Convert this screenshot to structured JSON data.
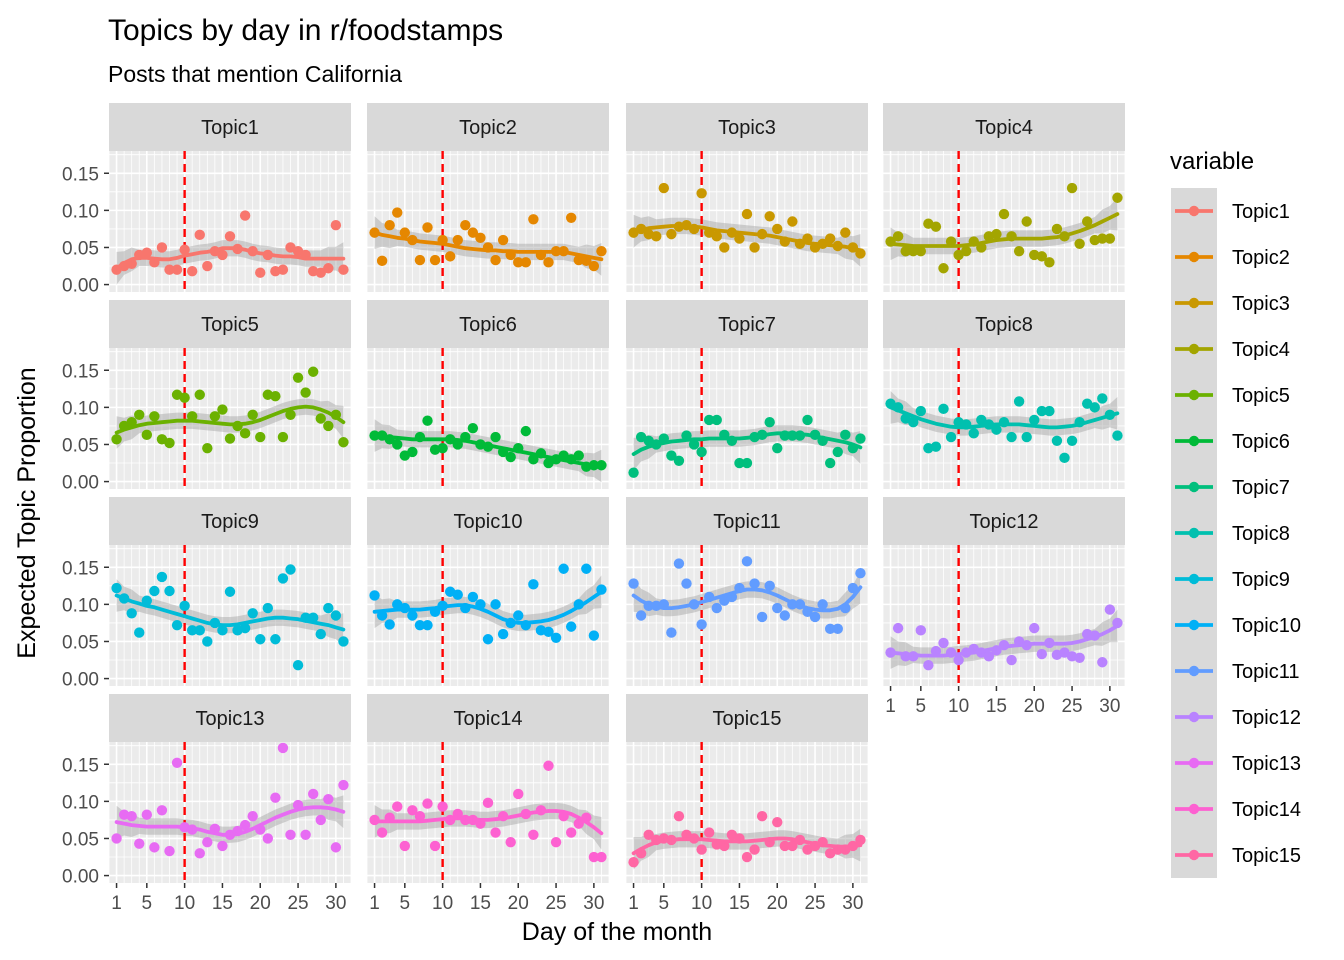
{
  "chart_data": {
    "type": "scatter",
    "title": "Topics by day in r/foodstamps",
    "subtitle": "Posts that mention California",
    "xlabel": "Day of the month",
    "ylabel": "Expected Topic Proportion",
    "xlim": [
      0,
      32
    ],
    "ylim": [
      -0.01,
      0.18
    ],
    "x_ticks": [
      1,
      5,
      10,
      15,
      20,
      25,
      30
    ],
    "y_ticks": [
      0.0,
      0.05,
      0.1,
      0.15
    ],
    "y_tick_labels": [
      "0.00",
      "0.05",
      "0.10",
      "0.15"
    ],
    "reference_line": {
      "x": 10,
      "color": "#ff0000",
      "style": "dashed"
    },
    "grid": true,
    "smoother": "loess with confidence band",
    "legend": {
      "title": "variable",
      "position": "right"
    },
    "series": [
      {
        "name": "Topic1",
        "color": "#F8766D",
        "values": [
          0.02,
          0.025,
          0.028,
          0.04,
          0.043,
          0.03,
          0.05,
          0.02,
          0.02,
          0.047,
          0.018,
          0.067,
          0.025,
          0.045,
          0.04,
          0.065,
          0.048,
          0.093,
          0.045,
          0.016,
          0.04,
          0.018,
          0.02,
          0.05,
          0.045,
          0.04,
          0.018,
          0.016,
          0.022,
          0.08,
          0.02
        ],
        "smooth": [
          0.022,
          0.029,
          0.034,
          0.036,
          0.036,
          0.035,
          0.034,
          0.034,
          0.036,
          0.039,
          0.041,
          0.043,
          0.044,
          0.046,
          0.049,
          0.049,
          0.049,
          0.047,
          0.044,
          0.042,
          0.041,
          0.039,
          0.038,
          0.038,
          0.037,
          0.035,
          0.035,
          0.035,
          0.035,
          0.035,
          0.035
        ]
      },
      {
        "name": "Topic2",
        "color": "#E58700",
        "values": [
          0.07,
          0.032,
          0.08,
          0.097,
          0.07,
          0.06,
          0.033,
          0.077,
          0.033,
          0.06,
          0.038,
          0.06,
          0.08,
          0.07,
          0.063,
          0.05,
          0.033,
          0.06,
          0.04,
          0.03,
          0.03,
          0.088,
          0.04,
          0.03,
          0.045,
          0.045,
          0.09,
          0.033,
          0.032,
          0.025,
          0.045
        ],
        "smooth": [
          0.07,
          0.067,
          0.065,
          0.063,
          0.062,
          0.06,
          0.058,
          0.057,
          0.056,
          0.055,
          0.053,
          0.051,
          0.049,
          0.048,
          0.047,
          0.046,
          0.046,
          0.045,
          0.045,
          0.044,
          0.044,
          0.044,
          0.044,
          0.044,
          0.044,
          0.044,
          0.042,
          0.04,
          0.038,
          0.036,
          0.034
        ]
      },
      {
        "name": "Topic3",
        "color": "#C99800",
        "values": [
          0.07,
          0.075,
          0.068,
          0.065,
          0.13,
          0.068,
          0.078,
          0.08,
          0.075,
          0.123,
          0.07,
          0.065,
          0.05,
          0.07,
          0.062,
          0.095,
          0.05,
          0.068,
          0.092,
          0.075,
          0.058,
          0.085,
          0.055,
          0.062,
          0.05,
          0.055,
          0.062,
          0.052,
          0.07,
          0.05,
          0.042
        ],
        "smooth": [
          0.072,
          0.074,
          0.076,
          0.077,
          0.078,
          0.079,
          0.079,
          0.079,
          0.078,
          0.077,
          0.075,
          0.073,
          0.072,
          0.071,
          0.07,
          0.069,
          0.068,
          0.067,
          0.066,
          0.064,
          0.062,
          0.06,
          0.058,
          0.056,
          0.055,
          0.054,
          0.053,
          0.052,
          0.051,
          0.049,
          0.046
        ]
      },
      {
        "name": "Topic4",
        "color": "#A3A500",
        "values": [
          0.058,
          0.065,
          0.045,
          0.045,
          0.045,
          0.082,
          0.078,
          0.022,
          0.058,
          0.04,
          0.045,
          0.058,
          0.05,
          0.065,
          0.068,
          0.095,
          0.065,
          0.045,
          0.085,
          0.04,
          0.038,
          0.03,
          0.075,
          0.065,
          0.13,
          0.055,
          0.085,
          0.06,
          0.062,
          0.062,
          0.117
        ],
        "smooth": [
          0.055,
          0.054,
          0.053,
          0.052,
          0.052,
          0.052,
          0.052,
          0.052,
          0.052,
          0.052,
          0.053,
          0.054,
          0.056,
          0.058,
          0.06,
          0.061,
          0.062,
          0.062,
          0.062,
          0.062,
          0.062,
          0.063,
          0.064,
          0.066,
          0.069,
          0.072,
          0.076,
          0.08,
          0.085,
          0.09,
          0.095
        ]
      },
      {
        "name": "Topic5",
        "color": "#6BB100",
        "values": [
          0.057,
          0.075,
          0.08,
          0.09,
          0.063,
          0.088,
          0.057,
          0.052,
          0.117,
          0.113,
          0.088,
          0.117,
          0.045,
          0.088,
          0.097,
          0.058,
          0.075,
          0.065,
          0.09,
          0.06,
          0.117,
          0.115,
          0.06,
          0.09,
          0.14,
          0.12,
          0.148,
          0.085,
          0.075,
          0.09,
          0.053
        ],
        "smooth": [
          0.066,
          0.07,
          0.073,
          0.076,
          0.078,
          0.079,
          0.08,
          0.081,
          0.082,
          0.082,
          0.082,
          0.081,
          0.08,
          0.079,
          0.078,
          0.077,
          0.077,
          0.078,
          0.08,
          0.083,
          0.087,
          0.091,
          0.095,
          0.098,
          0.1,
          0.101,
          0.1,
          0.097,
          0.093,
          0.087,
          0.08
        ]
      },
      {
        "name": "Topic6",
        "color": "#00BA38",
        "values": [
          0.062,
          0.062,
          0.057,
          0.05,
          0.035,
          0.04,
          0.06,
          0.082,
          0.043,
          0.045,
          0.057,
          0.05,
          0.06,
          0.072,
          0.05,
          0.047,
          0.06,
          0.04,
          0.033,
          0.045,
          0.068,
          0.03,
          0.038,
          0.025,
          0.03,
          0.035,
          0.03,
          0.035,
          0.02,
          0.022,
          0.022
        ],
        "smooth": [
          0.062,
          0.061,
          0.06,
          0.059,
          0.058,
          0.057,
          0.057,
          0.057,
          0.057,
          0.057,
          0.057,
          0.056,
          0.055,
          0.053,
          0.051,
          0.049,
          0.047,
          0.045,
          0.043,
          0.041,
          0.039,
          0.037,
          0.035,
          0.033,
          0.031,
          0.029,
          0.027,
          0.025,
          0.023,
          0.022,
          0.021
        ]
      },
      {
        "name": "Topic7",
        "color": "#00BF7D",
        "values": [
          0.012,
          0.06,
          0.055,
          0.05,
          0.058,
          0.035,
          0.028,
          0.062,
          0.05,
          0.04,
          0.083,
          0.083,
          0.063,
          0.055,
          0.025,
          0.025,
          0.06,
          0.063,
          0.08,
          0.045,
          0.062,
          0.062,
          0.062,
          0.083,
          0.063,
          0.055,
          0.025,
          0.04,
          0.063,
          0.045,
          0.058
        ],
        "smooth": [
          0.037,
          0.043,
          0.047,
          0.05,
          0.052,
          0.054,
          0.055,
          0.056,
          0.057,
          0.057,
          0.058,
          0.058,
          0.058,
          0.058,
          0.058,
          0.059,
          0.06,
          0.062,
          0.064,
          0.065,
          0.065,
          0.065,
          0.064,
          0.063,
          0.061,
          0.059,
          0.057,
          0.055,
          0.053,
          0.05,
          0.046
        ]
      },
      {
        "name": "Topic8",
        "color": "#00C0AF",
        "values": [
          0.105,
          0.1,
          0.085,
          0.08,
          0.095,
          0.045,
          0.047,
          0.098,
          0.06,
          0.08,
          0.077,
          0.065,
          0.083,
          0.077,
          0.07,
          0.08,
          0.06,
          0.108,
          0.06,
          0.083,
          0.095,
          0.095,
          0.055,
          0.032,
          0.055,
          0.08,
          0.105,
          0.1,
          0.112,
          0.09,
          0.062
        ],
        "smooth": [
          0.1,
          0.096,
          0.092,
          0.088,
          0.084,
          0.081,
          0.078,
          0.076,
          0.074,
          0.073,
          0.073,
          0.074,
          0.075,
          0.076,
          0.077,
          0.077,
          0.077,
          0.077,
          0.076,
          0.075,
          0.074,
          0.073,
          0.073,
          0.074,
          0.075,
          0.077,
          0.08,
          0.083,
          0.086,
          0.089,
          0.092
        ]
      },
      {
        "name": "Topic9",
        "color": "#00BCD8",
        "values": [
          0.122,
          0.108,
          0.088,
          0.062,
          0.105,
          0.118,
          0.137,
          0.118,
          0.072,
          0.098,
          0.065,
          0.065,
          0.05,
          0.075,
          0.065,
          0.117,
          0.065,
          0.068,
          0.088,
          0.053,
          0.095,
          0.053,
          0.135,
          0.147,
          0.018,
          0.082,
          0.082,
          0.06,
          0.095,
          0.085,
          0.05
        ],
        "smooth": [
          0.112,
          0.108,
          0.104,
          0.101,
          0.098,
          0.096,
          0.093,
          0.09,
          0.087,
          0.084,
          0.081,
          0.078,
          0.075,
          0.073,
          0.072,
          0.072,
          0.073,
          0.075,
          0.077,
          0.079,
          0.081,
          0.082,
          0.082,
          0.081,
          0.08,
          0.078,
          0.076,
          0.074,
          0.072,
          0.069,
          0.066
        ]
      },
      {
        "name": "Topic10",
        "color": "#00B0F6",
        "values": [
          0.112,
          0.085,
          0.073,
          0.1,
          0.095,
          0.085,
          0.072,
          0.072,
          0.09,
          0.098,
          0.117,
          0.113,
          0.095,
          0.11,
          0.1,
          0.053,
          0.1,
          0.06,
          0.075,
          0.085,
          0.072,
          0.127,
          0.065,
          0.063,
          0.055,
          0.148,
          0.07,
          0.1,
          0.148,
          0.058,
          0.12
        ],
        "smooth": [
          0.09,
          0.091,
          0.092,
          0.093,
          0.093,
          0.093,
          0.093,
          0.094,
          0.095,
          0.097,
          0.098,
          0.099,
          0.099,
          0.097,
          0.094,
          0.09,
          0.085,
          0.08,
          0.077,
          0.075,
          0.075,
          0.076,
          0.077,
          0.079,
          0.082,
          0.086,
          0.091,
          0.097,
          0.103,
          0.11,
          0.117
        ]
      },
      {
        "name": "Topic11",
        "color": "#619CFF",
        "values": [
          0.128,
          0.085,
          0.098,
          0.098,
          0.1,
          0.062,
          0.155,
          0.128,
          0.1,
          0.073,
          0.11,
          0.095,
          0.105,
          0.11,
          0.122,
          0.158,
          0.128,
          0.083,
          0.125,
          0.095,
          0.085,
          0.1,
          0.1,
          0.09,
          0.083,
          0.1,
          0.067,
          0.067,
          0.095,
          0.122,
          0.142
        ],
        "smooth": [
          0.112,
          0.105,
          0.1,
          0.097,
          0.095,
          0.095,
          0.096,
          0.098,
          0.1,
          0.103,
          0.106,
          0.109,
          0.112,
          0.115,
          0.118,
          0.12,
          0.12,
          0.119,
          0.116,
          0.112,
          0.107,
          0.102,
          0.098,
          0.095,
          0.093,
          0.092,
          0.092,
          0.094,
          0.1,
          0.11,
          0.123
        ]
      },
      {
        "name": "Topic12",
        "color": "#B983FF",
        "values": [
          0.035,
          0.068,
          0.03,
          0.03,
          0.065,
          0.018,
          0.037,
          0.048,
          0.035,
          0.025,
          0.035,
          0.04,
          0.035,
          0.03,
          0.038,
          0.045,
          0.025,
          0.05,
          0.045,
          0.068,
          0.033,
          0.048,
          0.032,
          0.035,
          0.03,
          0.028,
          0.06,
          0.058,
          0.022,
          0.093,
          0.075
        ],
        "smooth": [
          0.035,
          0.034,
          0.033,
          0.032,
          0.031,
          0.031,
          0.031,
          0.031,
          0.032,
          0.033,
          0.034,
          0.035,
          0.037,
          0.039,
          0.041,
          0.043,
          0.044,
          0.045,
          0.046,
          0.047,
          0.047,
          0.047,
          0.047,
          0.047,
          0.048,
          0.05,
          0.053,
          0.056,
          0.06,
          0.065,
          0.071
        ]
      },
      {
        "name": "Topic13",
        "color": "#E76BF3",
        "values": [
          0.05,
          0.082,
          0.08,
          0.043,
          0.082,
          0.038,
          0.088,
          0.033,
          0.152,
          0.065,
          0.062,
          0.03,
          0.045,
          0.063,
          0.04,
          0.055,
          0.06,
          0.068,
          0.08,
          0.062,
          0.05,
          0.105,
          0.172,
          0.055,
          0.095,
          0.055,
          0.11,
          0.075,
          0.103,
          0.038,
          0.122
        ],
        "smooth": [
          0.072,
          0.07,
          0.068,
          0.067,
          0.066,
          0.066,
          0.066,
          0.066,
          0.066,
          0.065,
          0.064,
          0.062,
          0.059,
          0.057,
          0.055,
          0.055,
          0.056,
          0.059,
          0.063,
          0.068,
          0.073,
          0.078,
          0.082,
          0.086,
          0.089,
          0.091,
          0.092,
          0.092,
          0.091,
          0.089,
          0.086
        ]
      },
      {
        "name": "Topic14",
        "color": "#FD61D1",
        "values": [
          0.075,
          0.058,
          0.078,
          0.093,
          0.04,
          0.088,
          0.08,
          0.097,
          0.04,
          0.093,
          0.075,
          0.083,
          0.075,
          0.075,
          0.07,
          0.098,
          0.058,
          0.08,
          0.045,
          0.11,
          0.083,
          0.055,
          0.088,
          0.148,
          0.045,
          0.08,
          0.058,
          0.07,
          0.078,
          0.025,
          0.025
        ],
        "smooth": [
          0.073,
          0.073,
          0.073,
          0.073,
          0.073,
          0.073,
          0.073,
          0.074,
          0.075,
          0.076,
          0.077,
          0.077,
          0.077,
          0.076,
          0.075,
          0.075,
          0.076,
          0.077,
          0.079,
          0.081,
          0.083,
          0.085,
          0.086,
          0.087,
          0.087,
          0.086,
          0.083,
          0.078,
          0.072,
          0.065,
          0.057
        ]
      },
      {
        "name": "Topic15",
        "color": "#FF67A4",
        "values": [
          0.018,
          0.03,
          0.055,
          0.048,
          0.05,
          0.048,
          0.08,
          0.055,
          0.05,
          0.035,
          0.058,
          0.042,
          0.04,
          0.055,
          0.05,
          0.025,
          0.035,
          0.08,
          0.045,
          0.072,
          0.04,
          0.04,
          0.048,
          0.035,
          0.04,
          0.045,
          0.03,
          0.035,
          0.035,
          0.04,
          0.048
        ],
        "smooth": [
          0.03,
          0.036,
          0.041,
          0.045,
          0.047,
          0.048,
          0.049,
          0.049,
          0.049,
          0.049,
          0.048,
          0.047,
          0.046,
          0.046,
          0.046,
          0.046,
          0.047,
          0.048,
          0.049,
          0.05,
          0.05,
          0.049,
          0.047,
          0.045,
          0.043,
          0.041,
          0.04,
          0.039,
          0.039,
          0.04,
          0.041
        ]
      }
    ]
  }
}
